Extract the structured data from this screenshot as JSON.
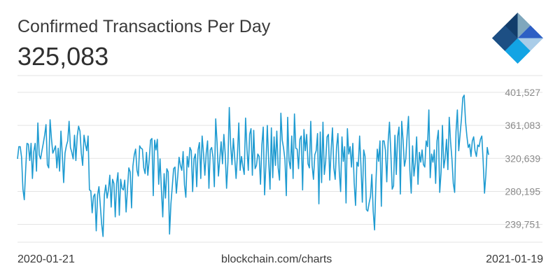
{
  "header": {
    "title": "Confirmed Transactions Per Day",
    "current_value": "325,083"
  },
  "footer": {
    "start_date": "2020-01-21",
    "source": "blockchain.com/charts",
    "end_date": "2021-01-19"
  },
  "colors": {
    "line": "#1f9bd1",
    "grid": "#e3e3e3",
    "logo_dark": "#123d6b",
    "logo_mid": "#2d5fc4",
    "logo_cyan": "#13a4e4",
    "logo_light": "#a9cce8",
    "logo_gray": "#7fa7bd"
  },
  "chart_data": {
    "type": "line",
    "title": "Confirmed Transactions Per Day",
    "x_range": [
      "2020-01-21",
      "2021-01-19"
    ],
    "ylim": [
      218000,
      422000
    ],
    "yticks": [
      239751,
      280195,
      320639,
      361083,
      401527
    ],
    "ytick_labels": [
      "239,751",
      "280,195",
      "320,639",
      "361,083",
      "401,527"
    ],
    "grid": true,
    "values": [
      320000,
      335000,
      335000,
      322000,
      283000,
      270000,
      306000,
      339000,
      338000,
      318000,
      339000,
      296000,
      329000,
      339000,
      305000,
      364000,
      325000,
      320000,
      330000,
      339000,
      349000,
      362000,
      313000,
      309000,
      368000,
      345000,
      327000,
      331000,
      336000,
      309000,
      333000,
      305000,
      354000,
      325000,
      291000,
      327000,
      336000,
      342000,
      366000,
      334000,
      328000,
      320000,
      349000,
      318000,
      348000,
      360000,
      354000,
      327000,
      312000,
      349000,
      338000,
      330000,
      348000,
      282000,
      281000,
      254000,
      274000,
      277000,
      232000,
      276000,
      286000,
      263000,
      240000,
      225000,
      276000,
      288000,
      272000,
      282000,
      300000,
      261000,
      295000,
      290000,
      249000,
      290000,
      303000,
      251000,
      295000,
      284000,
      282000,
      294000,
      255000,
      283000,
      309000,
      304000,
      260000,
      311000,
      325000,
      332000,
      306000,
      299000,
      336000,
      333000,
      332000,
      309000,
      302000,
      328000,
      300000,
      319000,
      343000,
      345000,
      275000,
      343000,
      331000,
      344000,
      289000,
      320000,
      282000,
      249000,
      302000,
      272000,
      308000,
      304000,
      228000,
      265000,
      286000,
      308000,
      310000,
      278000,
      298000,
      322000,
      312000,
      306000,
      329000,
      288000,
      273000,
      323000,
      310000,
      334000,
      330000,
      280000,
      320000,
      326000,
      286000,
      331000,
      340000,
      296000,
      348000,
      327000,
      300000,
      327000,
      342000,
      284000,
      331000,
      334000,
      322000,
      286000,
      369000,
      340000,
      299000,
      320000,
      341000,
      314000,
      350000,
      326000,
      284000,
      316000,
      383000,
      337000,
      313000,
      345000,
      321000,
      296000,
      325000,
      364000,
      306000,
      323000,
      311000,
      301000,
      370000,
      333000,
      306000,
      350000,
      357000,
      300000,
      355000,
      308000,
      312000,
      326000,
      323000,
      289000,
      337000,
      359000,
      276000,
      314000,
      361000,
      318000,
      283000,
      358000,
      297000,
      347000,
      312000,
      354000,
      309000,
      294000,
      376000,
      343000,
      333000,
      319000,
      275000,
      371000,
      318000,
      308000,
      348000,
      296000,
      375000,
      333000,
      332000,
      308000,
      344000,
      348000,
      282000,
      356000,
      330000,
      350000,
      314000,
      309000,
      366000,
      312000,
      295000,
      325000,
      330000,
      351000,
      265000,
      353000,
      291000,
      365000,
      301000,
      317000,
      347000,
      350000,
      294000,
      330000,
      358000,
      309000,
      295000,
      334000,
      351000,
      305000,
      280000,
      347000,
      317000,
      335000,
      266000,
      357000,
      326000,
      335000,
      310000,
      339000,
      291000,
      263000,
      316000,
      311000,
      348000,
      311000,
      267000,
      331000,
      323000,
      258000,
      256000,
      266000,
      274000,
      301000,
      256000,
      233000,
      290000,
      332000,
      317000,
      342000,
      262000,
      342000,
      342000,
      331000,
      292000,
      341000,
      365000,
      327000,
      283000,
      287000,
      349000,
      301000,
      347000,
      359000,
      277000,
      366000,
      343000,
      311000,
      320000,
      349000,
      372000,
      306000,
      278000,
      336000,
      299000,
      315000,
      347000,
      289000,
      328000,
      316000,
      331000,
      313000,
      310000,
      342000,
      335000,
      380000,
      297000,
      326000,
      316000,
      331000,
      290000,
      342000,
      355000,
      279000,
      304000,
      361000,
      309000,
      321000,
      344000,
      307000,
      371000,
      341000,
      320000,
      290000,
      279000,
      353000,
      380000,
      330000,
      350000,
      369000,
      395000,
      398000,
      366000,
      348000,
      334000,
      338000,
      323000,
      342000,
      347000,
      330000,
      323000,
      337000,
      335000,
      344000,
      348000,
      317000,
      278000,
      301000,
      334000,
      325000
    ]
  }
}
